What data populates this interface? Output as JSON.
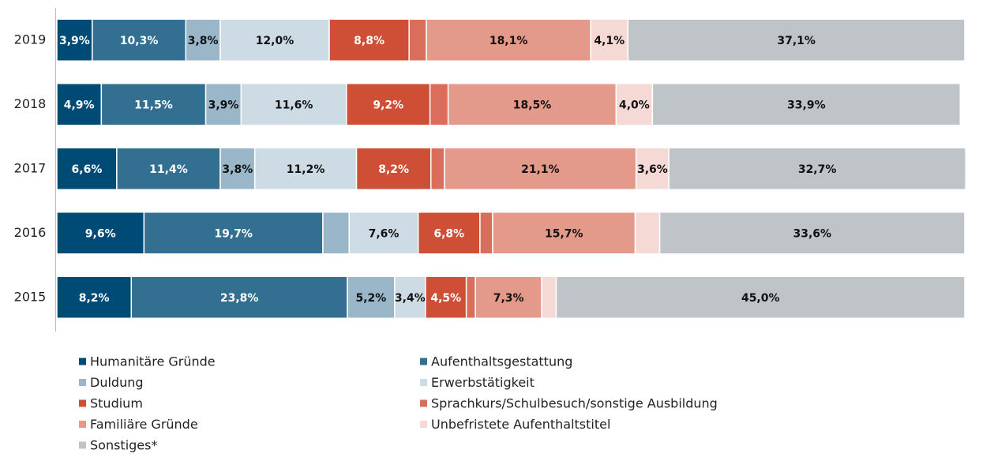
{
  "chart_data": {
    "type": "stacked-barh",
    "categories": [
      "2019",
      "2018",
      "2017",
      "2016",
      "2015"
    ],
    "xlim": [
      0,
      100
    ],
    "series": [
      {
        "name": "Humanitäre Gründe",
        "color": "#004b76",
        "values": [
          3.9,
          4.9,
          6.6,
          9.6,
          8.2
        ],
        "value_labels": [
          "3,9%",
          "4,9%",
          "6,6%",
          "9,6%",
          "8,2%"
        ]
      },
      {
        "name": "Aufenthaltsgestattung",
        "color": "#336f91",
        "values": [
          10.3,
          11.5,
          11.4,
          19.7,
          23.8
        ],
        "value_labels": [
          "10,3%",
          "11,5%",
          "11,4%",
          "19,7%",
          "23,8%"
        ]
      },
      {
        "name": "Duldung",
        "color": "#99b7c8",
        "values": [
          3.8,
          3.9,
          3.8,
          2.9,
          5.2
        ],
        "value_labels": [
          "3,8%",
          "3,9%",
          "3,8%",
          null,
          "5,2%"
        ]
      },
      {
        "name": "Erwerbstätigkeit",
        "color": "#ccdbe4",
        "values": [
          12.0,
          11.6,
          11.2,
          7.6,
          3.4
        ],
        "value_labels": [
          "12,0%",
          "11,6%",
          "11,2%",
          "7,6%",
          "3,4%"
        ]
      },
      {
        "name": "Studium",
        "color": "#cf4f36",
        "values": [
          8.8,
          9.2,
          8.2,
          6.8,
          4.5
        ],
        "value_labels": [
          "8,8%",
          "9,2%",
          "8,2%",
          "6,8%",
          "4,5%"
        ]
      },
      {
        "name": "Sprachkurs/Schulbesuch/sonstige Ausbildung",
        "color": "#da6e5d",
        "values": [
          1.9,
          2.0,
          1.5,
          1.4,
          1.0
        ],
        "value_labels": [
          null,
          null,
          null,
          null,
          null
        ]
      },
      {
        "name": "Familiäre Gründe",
        "color": "#e49a8b",
        "values": [
          18.1,
          18.5,
          21.1,
          15.7,
          7.3
        ],
        "value_labels": [
          "18,1%",
          "18,5%",
          "21,1%",
          "15,7%",
          "7,3%"
        ]
      },
      {
        "name": "Unbefristete Aufenthaltstitel",
        "color": "#f5d9d4",
        "values": [
          4.1,
          4.0,
          3.6,
          2.7,
          1.6
        ],
        "value_labels": [
          "4,1%",
          "4,0%",
          "3,6%",
          null,
          null
        ]
      },
      {
        "name": "Sonstiges*",
        "color": "#bec4c7",
        "values": [
          37.1,
          33.9,
          32.7,
          33.6,
          45.0
        ],
        "value_labels": [
          "37,1%",
          "33,9%",
          "32,7%",
          "33,6%",
          "45,0%"
        ]
      }
    ]
  }
}
